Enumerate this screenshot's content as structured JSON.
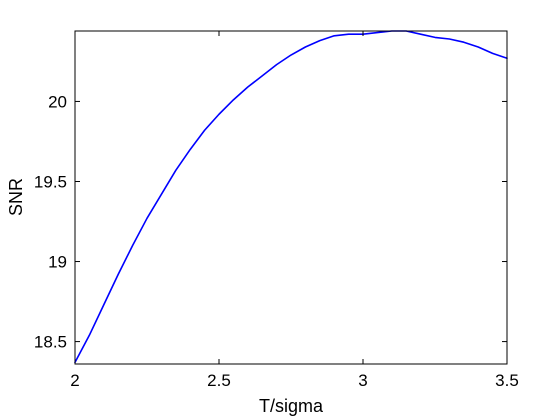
{
  "chart_data": {
    "type": "line",
    "title": "",
    "xlabel": "T/sigma",
    "ylabel": "SNR",
    "xlim": [
      2,
      3.5
    ],
    "ylim": [
      18.36,
      20.44
    ],
    "xticks": [
      2,
      2.5,
      3,
      3.5
    ],
    "xtick_labels": [
      "2",
      "2.5",
      "3",
      "3.5"
    ],
    "yticks": [
      18.5,
      19,
      19.5,
      20
    ],
    "ytick_labels": [
      "18.5",
      "19",
      "19.5",
      "20"
    ],
    "grid": false,
    "legend": "none",
    "series": [
      {
        "color": "#0000ff",
        "x": [
          2.0,
          2.05,
          2.1,
          2.15,
          2.2,
          2.25,
          2.3,
          2.35,
          2.4,
          2.45,
          2.5,
          2.55,
          2.6,
          2.65,
          2.7,
          2.75,
          2.8,
          2.85,
          2.9,
          2.95,
          3.0,
          3.05,
          3.1,
          3.15,
          3.2,
          3.25,
          3.3,
          3.35,
          3.4,
          3.45,
          3.5
        ],
        "y": [
          18.37,
          18.54,
          18.73,
          18.92,
          19.1,
          19.27,
          19.42,
          19.57,
          19.7,
          19.82,
          19.92,
          20.01,
          20.09,
          20.16,
          20.23,
          20.29,
          20.34,
          20.38,
          20.41,
          20.42,
          20.42,
          20.43,
          20.44,
          20.44,
          20.42,
          20.4,
          20.39,
          20.37,
          20.34,
          20.3,
          20.27
        ]
      }
    ]
  }
}
